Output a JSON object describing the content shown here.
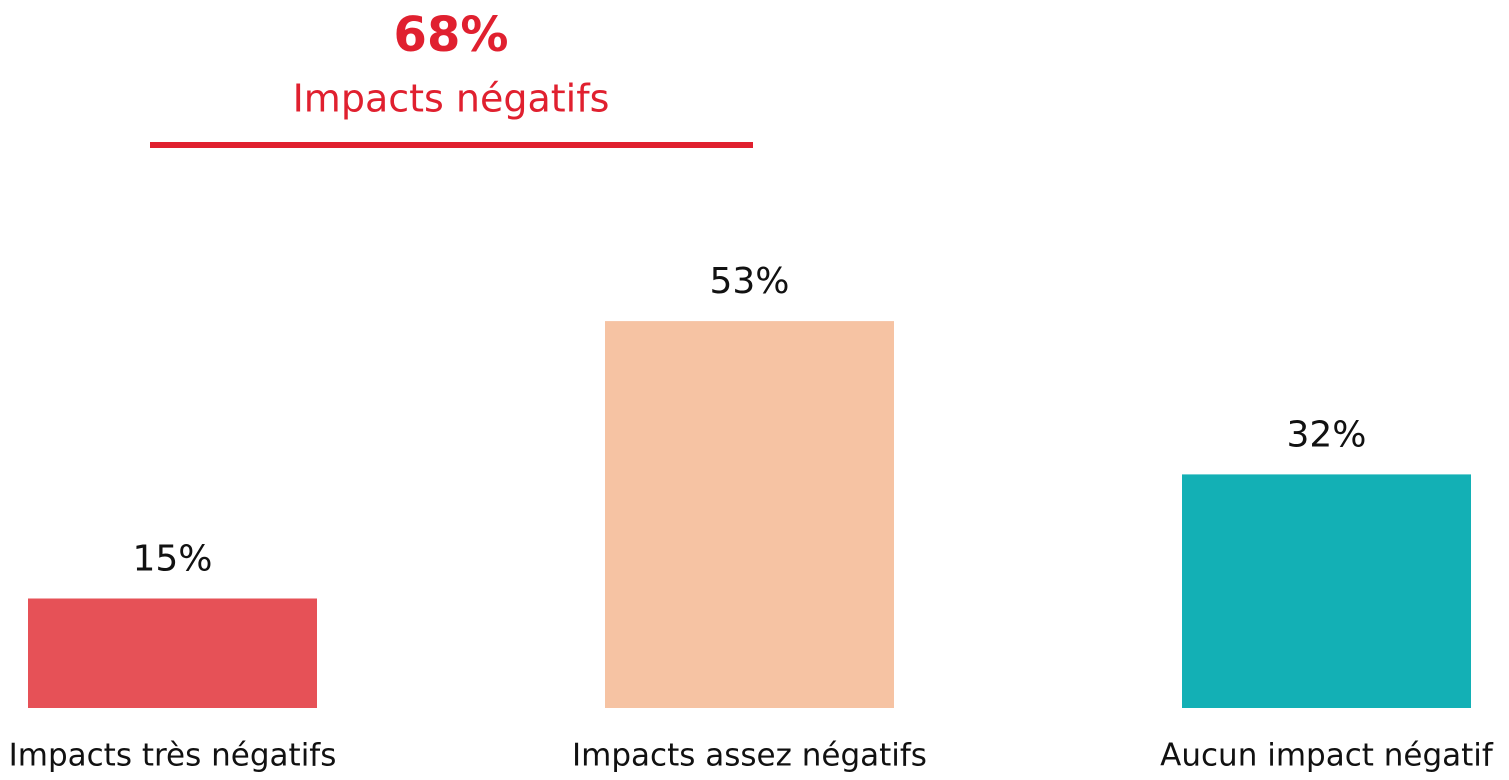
{
  "chart_data": {
    "type": "bar",
    "annotation": {
      "total": "68%",
      "text": "Impacts négatifs"
    },
    "categories": [
      "Impacts très négatifs",
      "Impacts assez négatifs",
      "Aucun impact négatif"
    ],
    "values": [
      15,
      53,
      32
    ],
    "value_labels": [
      "15%",
      "53%",
      "32%"
    ],
    "colors": [
      "#e65157",
      "#f6c3a3",
      "#13b0b5"
    ]
  }
}
